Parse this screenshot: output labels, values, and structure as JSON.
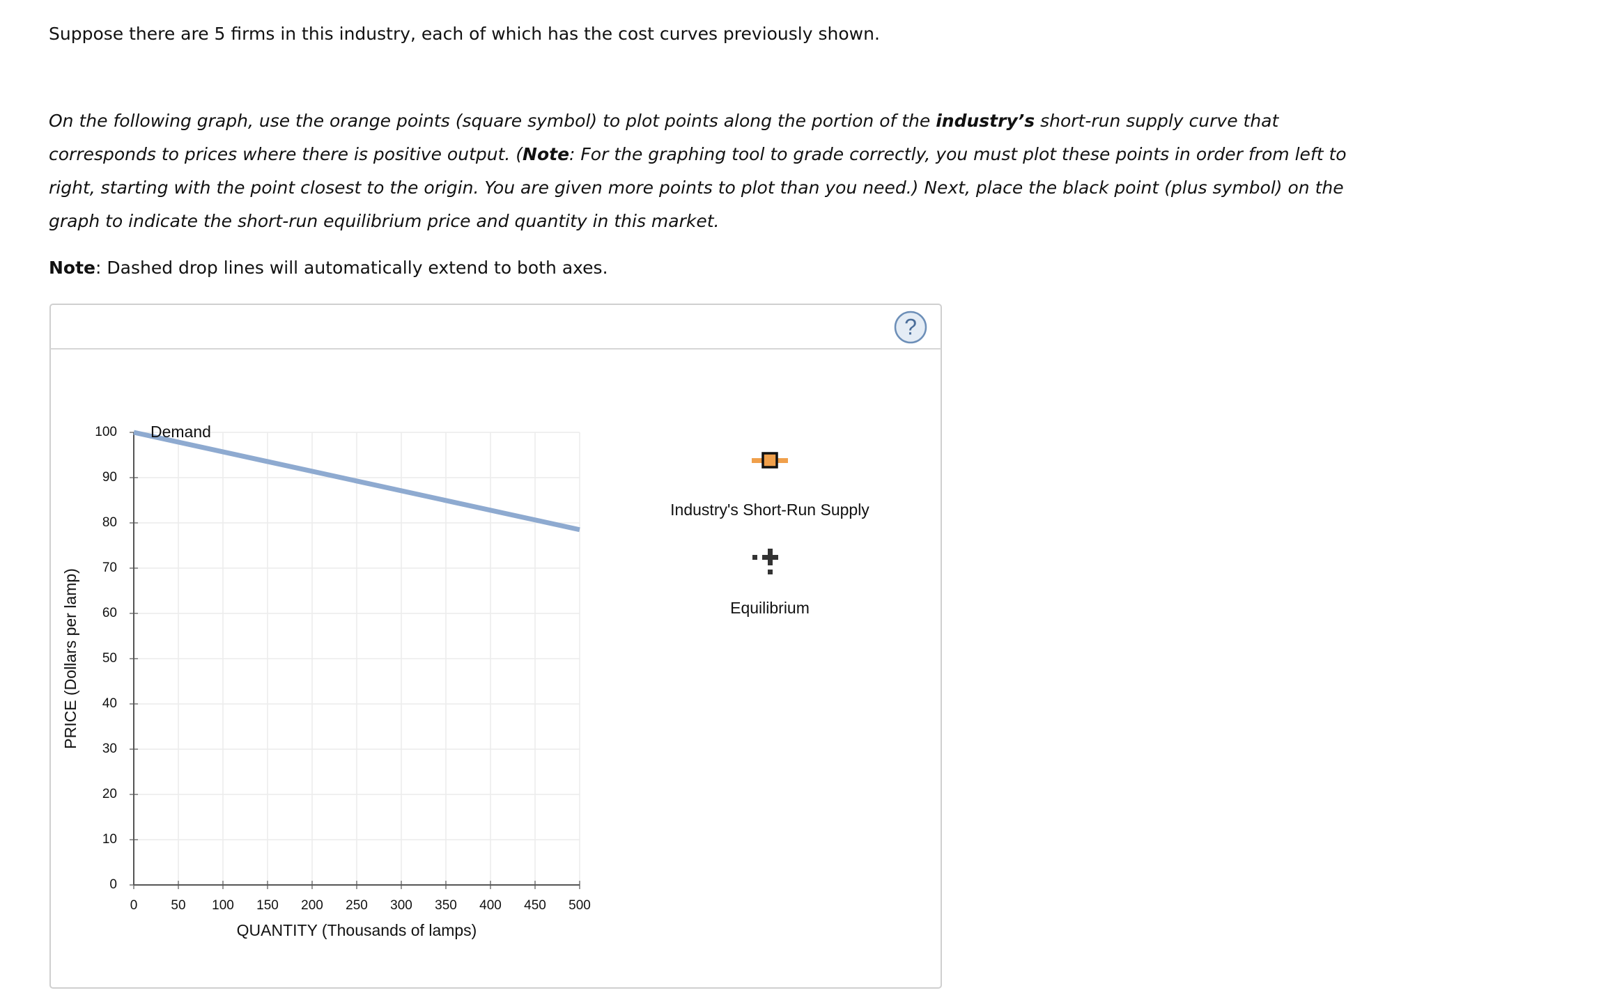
{
  "intro": "Suppose there are 5 firms in this industry, each of which has the cost curves previously shown.",
  "instructions": [
    "On the following graph, use the orange points (square symbol) to plot points along the portion of the ",
    "industry’s",
    " short-run supply curve that corresponds to prices where there is positive output. (",
    "Note",
    ": For the graphing tool to grade correctly, you must plot these points in order from left to right, starting with the point closest to the origin. You are given more points to plot than you need.) Next, place the black point (plus symbol) on the graph to indicate the short-run equilibrium price and quantity in this market."
  ],
  "note": [
    "Note",
    ": Dashed drop lines will automatically extend to both axes."
  ],
  "help_button": "?",
  "tool_palette": [
    "Industry's Short-Run Supply",
    "Equilibrium"
  ],
  "chart_data": {
    "type": "line",
    "x_label": "QUANTITY (Thousands of lamps)",
    "y_label": "PRICE (Dollars per lamp)",
    "x": [
      0,
      500
    ],
    "series": [
      {
        "name": "Demand",
        "color": "#8eaad0",
        "values": [
          100,
          78.5
        ]
      }
    ],
    "xlim": [
      0,
      500
    ],
    "ylim": [
      0,
      100
    ],
    "xticks": [
      0,
      50,
      100,
      150,
      200,
      250,
      300,
      350,
      400,
      450,
      500
    ],
    "yticks": [
      0,
      10,
      20,
      30,
      40,
      50,
      60,
      70,
      80,
      90,
      100
    ],
    "grid": true
  }
}
